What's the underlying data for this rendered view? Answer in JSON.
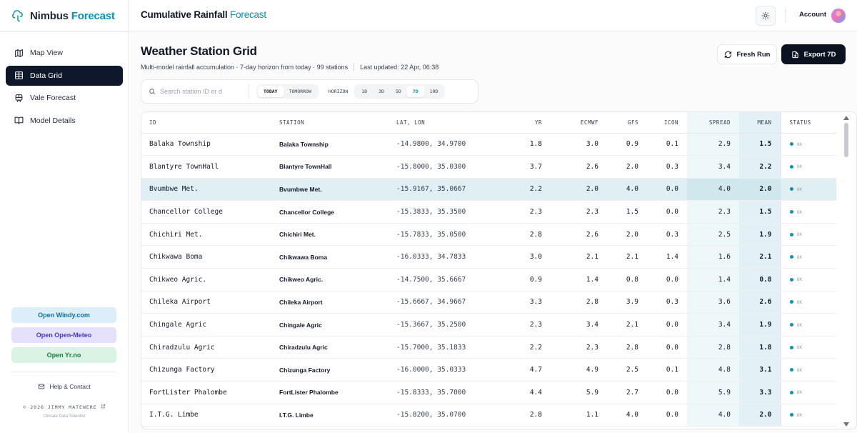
{
  "brand": {
    "name_a": "Nimbus",
    "name_b": "Forecast"
  },
  "nav": [
    {
      "label": "Map View",
      "icon": "map-icon",
      "active": false
    },
    {
      "label": "Data Grid",
      "icon": "grid-icon",
      "active": true
    },
    {
      "label": "Vale Forecast",
      "icon": "train-icon",
      "active": false
    },
    {
      "label": "Model Details",
      "icon": "book-icon",
      "active": false
    }
  ],
  "external_links": {
    "windy": "Open Windy.com",
    "open_meteo": "Open Open-Meteo",
    "yr": "Open Yr.no"
  },
  "help": "Help & Contact",
  "credit": {
    "line1": "© 2026 JIMMY MATEWERE",
    "line2": "Climate Data Scientist"
  },
  "header": {
    "title_a": "Cumulative Rainfall",
    "title_b": "Forecast",
    "account": "Account"
  },
  "page": {
    "title": "Weather Station Grid",
    "subtitle": "Multi-model rainfall accumulation · 7-day horizon from today · 99 stations",
    "updated": "Last updated: 22 Apr, 06:38",
    "fresh_run": "Fresh Run",
    "export": "Export 7D"
  },
  "toolbar": {
    "search_placeholder": "Search station ID or d",
    "day_today": "TODAY",
    "day_tomorrow": "TOMORROW",
    "horizon_label": "HORIZON",
    "horizons": [
      "1D",
      "3D",
      "5D",
      "7D",
      "10D"
    ],
    "active_horizon": "7D"
  },
  "table": {
    "headers": {
      "id": "ID",
      "station": "STATION",
      "latlon": "LAT, LON",
      "yr": "YR",
      "ecmwf": "ECMWF",
      "gfs": "GFS",
      "icon": "ICON",
      "spread": "SPREAD",
      "mean": "MEAN",
      "status": "STATUS"
    },
    "rows": [
      {
        "id": "Balaka Township",
        "station": "Balaka Township",
        "latlon": "-14.9800, 34.9700",
        "yr": "1.8",
        "ecmwf": "3.0",
        "gfs": "0.9",
        "icon": "0.1",
        "spread": "2.9",
        "mean": "1.5",
        "status": "OK"
      },
      {
        "id": "Blantyre TownHall",
        "station": "Blantyre TownHall",
        "latlon": "-15.8000, 35.0300",
        "yr": "3.7",
        "ecmwf": "2.6",
        "gfs": "2.0",
        "icon": "0.3",
        "spread": "3.4",
        "mean": "2.2",
        "status": "OK"
      },
      {
        "id": "Bvumbwe Met.",
        "station": "Bvumbwe Met.",
        "latlon": "-15.9167, 35.0667",
        "yr": "2.2",
        "ecmwf": "2.0",
        "gfs": "4.0",
        "icon": "0.0",
        "spread": "4.0",
        "mean": "2.0",
        "status": "OK",
        "highlight": true
      },
      {
        "id": "Chancellor College",
        "station": "Chancellor College",
        "latlon": "-15.3833, 35.3500",
        "yr": "2.3",
        "ecmwf": "2.3",
        "gfs": "1.5",
        "icon": "0.0",
        "spread": "2.3",
        "mean": "1.5",
        "status": "OK"
      },
      {
        "id": "Chichiri Met.",
        "station": "Chichiri Met.",
        "latlon": "-15.7833, 35.0500",
        "yr": "2.8",
        "ecmwf": "2.6",
        "gfs": "2.0",
        "icon": "0.3",
        "spread": "2.5",
        "mean": "1.9",
        "status": "OK"
      },
      {
        "id": "Chikwawa Boma",
        "station": "Chikwawa Boma",
        "latlon": "-16.0333, 34.7833",
        "yr": "3.0",
        "ecmwf": "2.1",
        "gfs": "2.1",
        "icon": "1.4",
        "spread": "1.6",
        "mean": "2.1",
        "status": "OK"
      },
      {
        "id": "Chikweo Agric.",
        "station": "Chikweo Agric.",
        "latlon": "-14.7500, 35.6667",
        "yr": "0.9",
        "ecmwf": "1.4",
        "gfs": "0.8",
        "icon": "0.0",
        "spread": "1.4",
        "mean": "0.8",
        "status": "OK"
      },
      {
        "id": "Chileka Airport",
        "station": "Chileka Airport",
        "latlon": "-15.6667, 34.9667",
        "yr": "3.3",
        "ecmwf": "2.8",
        "gfs": "3.9",
        "icon": "0.3",
        "spread": "3.6",
        "mean": "2.6",
        "status": "OK"
      },
      {
        "id": "Chingale Agric",
        "station": "Chingale Agric",
        "latlon": "-15.3667, 35.2500",
        "yr": "2.3",
        "ecmwf": "3.4",
        "gfs": "2.1",
        "icon": "0.0",
        "spread": "3.4",
        "mean": "1.9",
        "status": "OK"
      },
      {
        "id": "Chiradzulu Agric",
        "station": "Chiradzulu Agric",
        "latlon": "-15.7000, 35.1833",
        "yr": "2.2",
        "ecmwf": "2.3",
        "gfs": "2.8",
        "icon": "0.0",
        "spread": "2.8",
        "mean": "1.8",
        "status": "OK"
      },
      {
        "id": "Chizunga Factory",
        "station": "Chizunga Factory",
        "latlon": "-16.0000, 35.0333",
        "yr": "4.7",
        "ecmwf": "4.9",
        "gfs": "2.5",
        "icon": "0.1",
        "spread": "4.8",
        "mean": "3.1",
        "status": "OK"
      },
      {
        "id": "FortLister Phalombe",
        "station": "FortLister Phalombe",
        "latlon": "-15.8333, 35.7000",
        "yr": "4.4",
        "ecmwf": "5.9",
        "gfs": "2.7",
        "icon": "0.0",
        "spread": "5.9",
        "mean": "3.3",
        "status": "OK"
      },
      {
        "id": "I.T.G. Limbe",
        "station": "I.T.G. Limbe",
        "latlon": "-15.8200, 35.0700",
        "yr": "2.8",
        "ecmwf": "1.1",
        "gfs": "4.0",
        "icon": "0.0",
        "spread": "4.0",
        "mean": "2.0",
        "status": "OK"
      }
    ]
  },
  "colors": {
    "accent": "#0e8fb5",
    "dark": "#0f172a",
    "status_ok": "#0e8fb5"
  }
}
